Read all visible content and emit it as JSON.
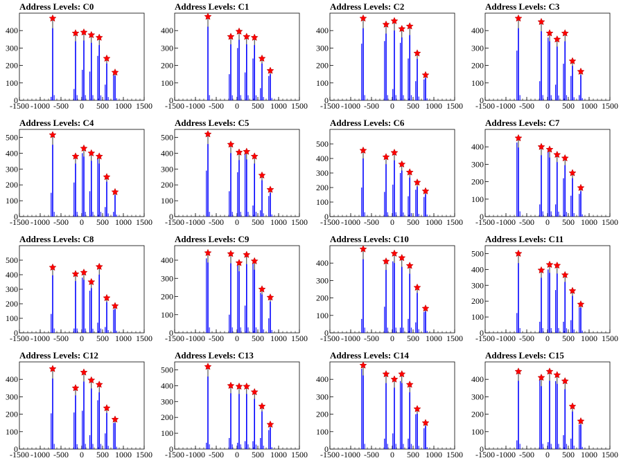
{
  "chart_data": {
    "type": "histogram",
    "x_range": [
      -1500,
      1500
    ],
    "x_ticks": [
      -1500,
      -1000,
      -500,
      0,
      500,
      1000,
      1500
    ],
    "x_tick_labels": [
      "-1500",
      "-1000",
      "-500",
      "0",
      "500",
      "1000",
      "1500"
    ],
    "colors": {
      "hist": "#0000ff",
      "marker": "#ff0000",
      "axis": "#000000"
    },
    "level_x": [
      -700,
      -150,
      50,
      230,
      420,
      600,
      800
    ],
    "panels": [
      {
        "title": "Address Levels: C0",
        "ylim": [
          0,
          500
        ],
        "y_ticks": [
          0,
          100,
          200,
          300,
          400
        ],
        "peaks": [
          470,
          385,
          390,
          375,
          360,
          240,
          160
        ],
        "side": [
          20,
          65,
          175,
          165,
          255,
          90,
          150
        ]
      },
      {
        "title": "Address Levels: C1",
        "ylim": [
          0,
          500
        ],
        "y_ticks": [
          0,
          100,
          200,
          300,
          400
        ],
        "peaks": [
          480,
          365,
          395,
          365,
          360,
          240,
          170
        ],
        "side": [
          0,
          150,
          300,
          160,
          240,
          70,
          140
        ]
      },
      {
        "title": "Address Levels: C2",
        "ylim": [
          0,
          500
        ],
        "y_ticks": [
          0,
          100,
          200,
          300,
          400
        ],
        "peaks": [
          470,
          435,
          455,
          410,
          425,
          270,
          145
        ],
        "side": [
          325,
          340,
          65,
          330,
          240,
          110,
          120
        ]
      },
      {
        "title": "Address Levels: C3",
        "ylim": [
          0,
          500
        ],
        "y_ticks": [
          0,
          100,
          200,
          300,
          400
        ],
        "peaks": [
          470,
          450,
          385,
          350,
          385,
          225,
          165
        ],
        "side": [
          285,
          110,
          360,
          90,
          210,
          140,
          30
        ]
      },
      {
        "title": "Address Levels: C4",
        "ylim": [
          0,
          550
        ],
        "y_ticks": [
          0,
          100,
          200,
          300,
          400,
          500
        ],
        "peaks": [
          515,
          380,
          430,
          400,
          380,
          250,
          155
        ],
        "side": [
          150,
          215,
          400,
          160,
          370,
          60,
          30
        ]
      },
      {
        "title": "Address Levels: C5",
        "ylim": [
          0,
          550
        ],
        "y_ticks": [
          0,
          100,
          200,
          300,
          400,
          500
        ],
        "peaks": [
          520,
          455,
          405,
          410,
          380,
          260,
          170
        ],
        "side": [
          290,
          160,
          280,
          400,
          70,
          40,
          130
        ]
      },
      {
        "title": "Address Levels: C6",
        "ylim": [
          0,
          600
        ],
        "y_ticks": [
          0,
          100,
          200,
          300,
          400,
          500
        ],
        "peaks": [
          455,
          410,
          440,
          360,
          305,
          235,
          175
        ],
        "side": [
          200,
          170,
          220,
          300,
          140,
          185,
          135
        ]
      },
      {
        "title": "Address Levels: C7",
        "ylim": [
          0,
          500
        ],
        "y_ticks": [
          0,
          100,
          200,
          300,
          400
        ],
        "peaks": [
          450,
          400,
          385,
          355,
          335,
          250,
          165
        ],
        "side": [
          425,
          70,
          380,
          70,
          220,
          120,
          130
        ]
      },
      {
        "title": "Address Levels: C8",
        "ylim": [
          0,
          600
        ],
        "y_ticks": [
          0,
          100,
          200,
          300,
          400,
          500
        ],
        "peaks": [
          450,
          405,
          415,
          350,
          455,
          240,
          185
        ],
        "side": [
          130,
          30,
          380,
          290,
          70,
          40,
          160
        ]
      },
      {
        "title": "Address Levels: C9",
        "ylim": [
          0,
          480
        ],
        "y_ticks": [
          0,
          100,
          200,
          300,
          400
        ],
        "peaks": [
          440,
          435,
          385,
          430,
          395,
          240,
          195
        ],
        "side": [
          410,
          100,
          370,
          150,
          380,
          220,
          80
        ]
      },
      {
        "title": "Address Levels: C10",
        "ylim": [
          0,
          500
        ],
        "y_ticks": [
          0,
          100,
          200,
          300,
          400
        ],
        "peaks": [
          480,
          410,
          455,
          430,
          385,
          260,
          140
        ],
        "side": [
          80,
          150,
          410,
          30,
          80,
          60,
          120
        ]
      },
      {
        "title": "Address Levels: C11",
        "ylim": [
          0,
          550
        ],
        "y_ticks": [
          0,
          100,
          200,
          300,
          400,
          500
        ],
        "peaks": [
          500,
          395,
          430,
          425,
          365,
          265,
          180
        ],
        "side": [
          125,
          70,
          400,
          270,
          70,
          80,
          160
        ]
      },
      {
        "title": "Address Levels: C12",
        "ylim": [
          0,
          500
        ],
        "y_ticks": [
          0,
          100,
          200,
          300,
          400
        ],
        "peaks": [
          460,
          350,
          440,
          395,
          370,
          235,
          170
        ],
        "side": [
          205,
          210,
          220,
          80,
          280,
          90,
          150
        ]
      },
      {
        "title": "Address Levels: C13",
        "ylim": [
          0,
          550
        ],
        "y_ticks": [
          0,
          100,
          200,
          300,
          400,
          500
        ],
        "peaks": [
          520,
          400,
          395,
          395,
          360,
          270,
          155
        ],
        "side": [
          40,
          70,
          40,
          50,
          50,
          70,
          120
        ]
      },
      {
        "title": "Address Levels: C14",
        "ylim": [
          0,
          500
        ],
        "y_ticks": [
          0,
          100,
          200,
          300,
          400
        ],
        "peaks": [
          480,
          430,
          400,
          430,
          370,
          230,
          150
        ],
        "side": [
          460,
          60,
          90,
          390,
          60,
          200,
          120
        ]
      },
      {
        "title": "Address Levels: C15",
        "ylim": [
          0,
          500
        ],
        "y_ticks": [
          0,
          100,
          200,
          300,
          400
        ],
        "peaks": [
          445,
          410,
          445,
          425,
          390,
          245,
          160
        ],
        "side": [
          50,
          400,
          40,
          390,
          80,
          60,
          140
        ]
      }
    ]
  }
}
